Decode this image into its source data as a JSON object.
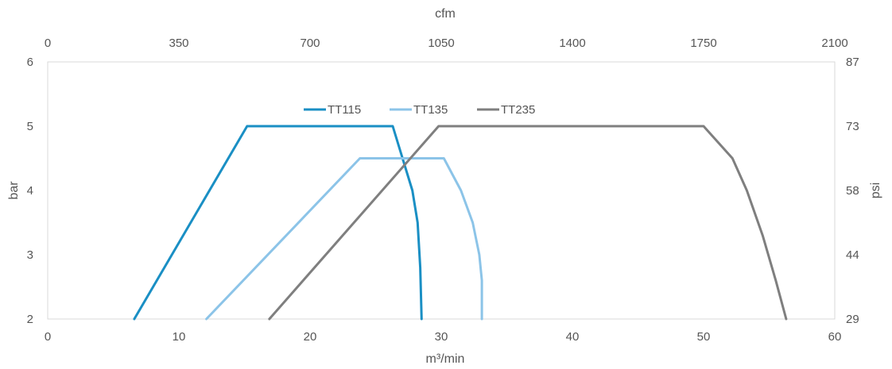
{
  "chart_data": {
    "type": "line",
    "title": "",
    "xlabel": "m³/min",
    "ylabel": "bar",
    "secondary_xlabel": "cfm",
    "secondary_ylabel": "psi",
    "xlim": [
      0,
      60
    ],
    "ylim": [
      2,
      6
    ],
    "x_ticks": [
      "0",
      "10",
      "20",
      "30",
      "40",
      "50",
      "60"
    ],
    "y_ticks": [
      "2",
      "3",
      "4",
      "5",
      "6"
    ],
    "top_x_ticks": [
      "0",
      "350",
      "700",
      "1050",
      "1400",
      "1750",
      "2100"
    ],
    "right_y_ticks": [
      "29",
      "44",
      "58",
      "73",
      "87"
    ],
    "grid": false,
    "legend_position": "top-center",
    "series": [
      {
        "name": "TT115",
        "color": "#1a8fc4",
        "points": [
          [
            6.6,
            2
          ],
          [
            15.2,
            5
          ],
          [
            26.3,
            5
          ],
          [
            27.2,
            4.4
          ],
          [
            27.8,
            4.0
          ],
          [
            28.2,
            3.5
          ],
          [
            28.4,
            2.8
          ],
          [
            28.5,
            2
          ]
        ]
      },
      {
        "name": "TT135",
        "color": "#8cc4e8",
        "points": [
          [
            12.1,
            2
          ],
          [
            23.8,
            4.5
          ],
          [
            30.2,
            4.5
          ],
          [
            31.5,
            4.0
          ],
          [
            32.4,
            3.5
          ],
          [
            32.9,
            3.0
          ],
          [
            33.1,
            2.6
          ],
          [
            33.1,
            2
          ]
        ]
      },
      {
        "name": "TT235",
        "color": "#7f7f7f",
        "points": [
          [
            16.9,
            2
          ],
          [
            29.8,
            5
          ],
          [
            50.0,
            5
          ],
          [
            52.2,
            4.5
          ],
          [
            53.3,
            4.0
          ],
          [
            54.5,
            3.3
          ],
          [
            55.5,
            2.6
          ],
          [
            56.3,
            2
          ]
        ]
      }
    ]
  }
}
